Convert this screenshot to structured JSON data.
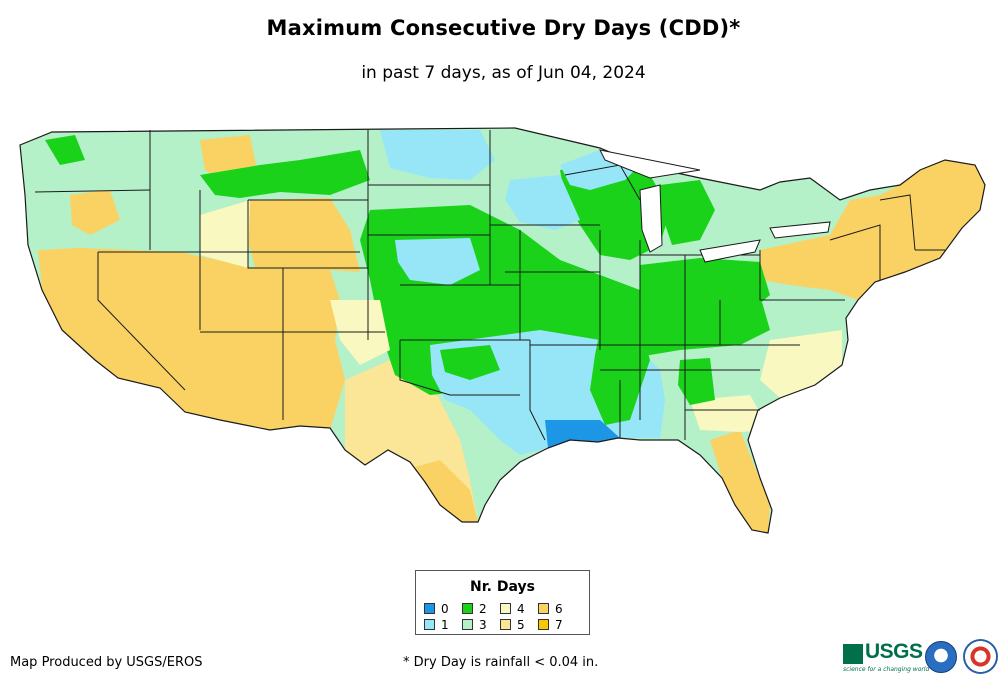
{
  "title": "Maximum Consecutive Dry Days (CDD)*",
  "subtitle": "in past 7 days, as of Jun 04, 2024",
  "legend": {
    "title": "Nr. Days",
    "items": [
      {
        "label": "0",
        "color": "#1e96e6"
      },
      {
        "label": "1",
        "color": "#96e6f8"
      },
      {
        "label": "2",
        "color": "#19d219"
      },
      {
        "label": "3",
        "color": "#b4f0c8"
      },
      {
        "label": "4",
        "color": "#f8f8c0"
      },
      {
        "label": "5",
        "color": "#fae696"
      },
      {
        "label": "6",
        "color": "#fad264"
      },
      {
        "label": "7",
        "color": "#fac800"
      }
    ]
  },
  "footer": {
    "credit": "Map Produced by USGS/EROS",
    "footnote": "* Dry Day is rainfall < 0.04 in."
  },
  "logos": {
    "usgs": "USGS",
    "usgs_tagline": "science for a changing world"
  },
  "colors": {
    "state_border": "#1a1a1a",
    "ocean": "#ffffff"
  }
}
